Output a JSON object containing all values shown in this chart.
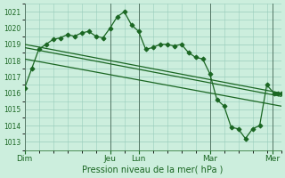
{
  "bg_color": "#cceedd",
  "grid_color": "#99ccbb",
  "line_color": "#1a6622",
  "ylabel": "Pression niveau de la mer( hPa )",
  "ylim": [
    1012.5,
    1021.5
  ],
  "yticks": [
    1013,
    1014,
    1015,
    1016,
    1017,
    1018,
    1019,
    1020,
    1021
  ],
  "xlim": [
    0,
    9.0
  ],
  "day_labels": [
    "Dim",
    "Jeu",
    "Lun",
    "Mar",
    "Mer"
  ],
  "day_positions": [
    0.0,
    3.0,
    4.0,
    6.5,
    8.7
  ],
  "vline_positions": [
    0.0,
    3.0,
    4.0,
    6.5,
    8.7
  ],
  "series1_x": [
    0.0,
    0.25,
    0.5,
    0.75,
    1.0,
    1.25,
    1.5,
    1.75,
    2.0,
    2.25,
    2.5,
    2.75,
    3.0,
    3.25,
    3.5,
    3.75,
    4.0,
    4.25,
    4.5,
    4.75,
    5.0,
    5.25,
    5.5,
    5.75,
    6.0,
    6.25,
    6.5,
    6.75,
    7.0,
    7.25,
    7.5,
    7.75,
    8.0,
    8.25,
    8.5,
    8.75,
    8.9,
    9.0
  ],
  "series1_y": [
    1016.3,
    1017.5,
    1018.7,
    1019.0,
    1019.3,
    1019.4,
    1019.6,
    1019.5,
    1019.7,
    1019.8,
    1019.5,
    1019.4,
    1020.0,
    1020.7,
    1021.0,
    1020.2,
    1019.8,
    1018.7,
    1018.8,
    1019.0,
    1019.0,
    1018.9,
    1019.0,
    1018.5,
    1018.2,
    1018.1,
    1017.2,
    1015.6,
    1015.2,
    1013.9,
    1013.8,
    1013.2,
    1013.8,
    1014.0,
    1016.5,
    1016.0,
    1016.0,
    1016.0
  ],
  "series2_x": [
    0.0,
    9.0
  ],
  "series2_y": [
    1019.0,
    1016.0
  ],
  "series3_x": [
    0.0,
    9.0
  ],
  "series3_y": [
    1018.8,
    1015.8
  ],
  "series4_x": [
    0.0,
    9.0
  ],
  "series4_y": [
    1018.1,
    1015.2
  ]
}
